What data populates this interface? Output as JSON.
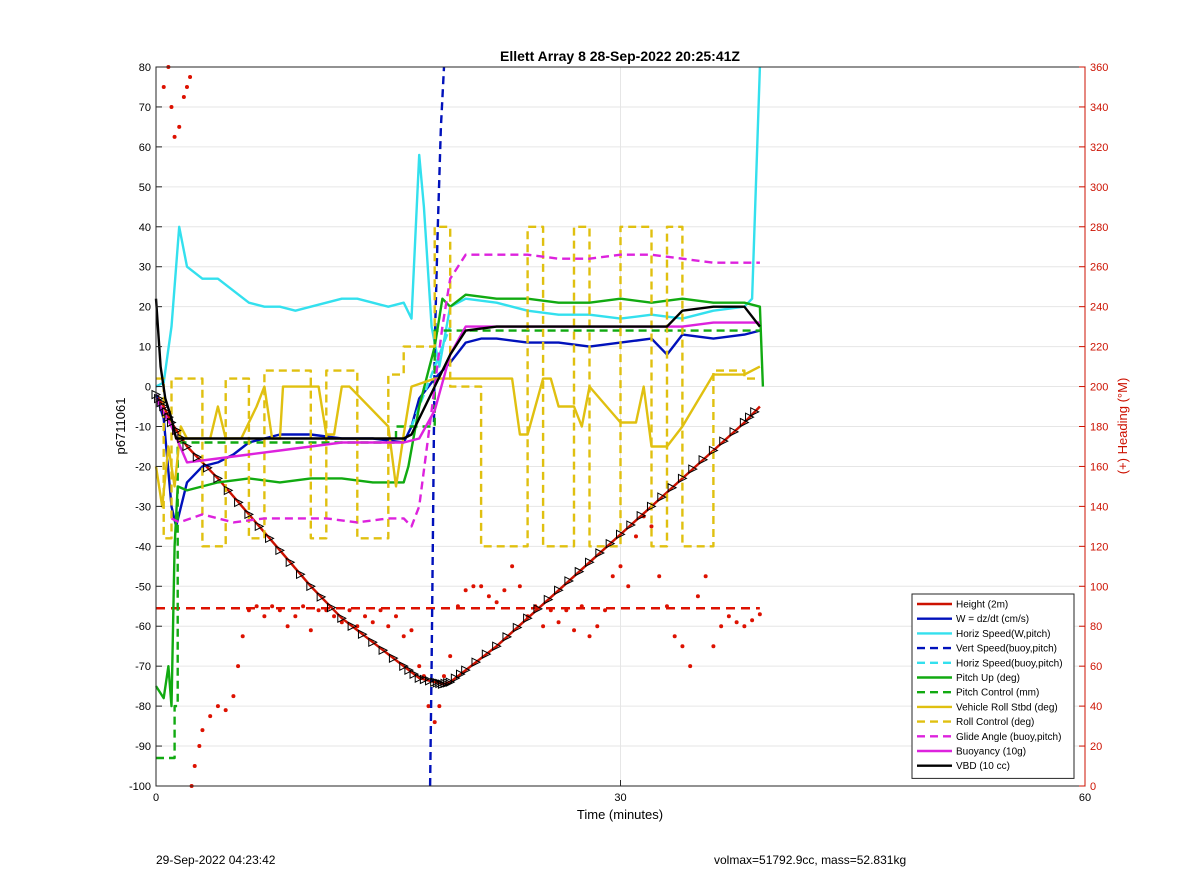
{
  "chart_data": {
    "type": "line",
    "title": "Ellett Array 8 28-Sep-2022 20:25:41Z",
    "xlabel": "Time (minutes)",
    "ylabel_left": "p6711061",
    "ylabel_right": "(+) Heading (°M)",
    "xlim": [
      0,
      60
    ],
    "ylim_left": [
      -100,
      80
    ],
    "ylim_right": [
      0,
      360
    ],
    "x_ticks": [
      0,
      30,
      60
    ],
    "y_ticks_left": [
      80,
      70,
      60,
      50,
      40,
      30,
      20,
      10,
      0,
      -10,
      -20,
      -30,
      -40,
      -50,
      -60,
      -70,
      -80,
      -90,
      -100
    ],
    "y_ticks_right": [
      360,
      340,
      320,
      300,
      280,
      260,
      240,
      220,
      200,
      180,
      160,
      140,
      120,
      100,
      80,
      60,
      40,
      20,
      0
    ],
    "grid": true,
    "legend_position": "bottom-right",
    "colors": {
      "height": "#cc1100",
      "w": "#0011bb",
      "horiz_w": "#33e0ee",
      "vert_buoy": "#0011bb",
      "horiz_buoy": "#33e0ee",
      "pitch_up": "#11aa11",
      "pitch_ctrl": "#11aa11",
      "roll": "#e0c010",
      "roll_ctrl": "#e0c010",
      "glide": "#dd22dd",
      "buoyancy": "#dd22dd",
      "vbd": "#000000",
      "heading": "#dd1100"
    },
    "series": [
      {
        "name": "Height (2m)",
        "style": "solid",
        "color_key": "height",
        "x": [
          0,
          0.5,
          1,
          2,
          4,
          6,
          8,
          10,
          12,
          14,
          16,
          17,
          18,
          18.5,
          19,
          20,
          22,
          24,
          26,
          28,
          30,
          32,
          34,
          36,
          38,
          39
        ],
        "y": [
          -2,
          -5,
          -9,
          -15,
          -23,
          -32,
          -41,
          -50,
          -58,
          -64,
          -70,
          -73,
          -74,
          -74.5,
          -74,
          -71,
          -65,
          -58,
          -51,
          -44,
          -37,
          -30,
          -23,
          -16,
          -9,
          -5
        ]
      },
      {
        "name": "W = dz/dt (cm/s)",
        "style": "solid",
        "color_key": "w",
        "x": [
          0,
          0.5,
          1,
          1.3,
          2,
          3,
          4,
          5,
          6,
          7,
          8,
          10,
          12,
          14,
          16,
          16.5,
          17,
          18,
          19,
          20,
          21,
          22,
          24,
          26,
          28,
          30,
          32,
          33,
          34,
          36,
          38,
          39
        ],
        "y": [
          -2,
          -8,
          -30,
          -35,
          -24,
          -20,
          -19,
          -17,
          -14,
          -13,
          -12,
          -12,
          -13,
          -13,
          -14,
          -10,
          -3,
          2,
          6,
          11,
          12,
          12,
          11,
          11,
          10,
          11,
          12,
          8,
          13,
          12,
          13,
          14
        ]
      },
      {
        "name": "Horiz Speed(W,pitch)",
        "style": "solid",
        "color_key": "horiz_w",
        "x": [
          0,
          0.5,
          1,
          1.5,
          2,
          3,
          4,
          5,
          6,
          7,
          8,
          9,
          10,
          11,
          12,
          13,
          14,
          15,
          16,
          16.5,
          17,
          17.3,
          17.8,
          18.3,
          19,
          20,
          22,
          24,
          26,
          28,
          30,
          32,
          34,
          36,
          38,
          38.5,
          39
        ],
        "y": [
          0,
          1,
          15,
          40,
          30,
          27,
          27,
          24,
          21,
          20,
          20,
          19,
          20,
          21,
          22,
          22,
          21,
          20,
          21,
          17,
          58,
          45,
          15,
          5,
          20,
          22,
          21,
          19,
          18,
          18,
          17,
          18,
          17,
          19,
          20,
          22,
          80
        ]
      },
      {
        "name": "Vert Speed(buoy,pitch)",
        "style": "dashed",
        "color_key": "vert_buoy",
        "x": [
          17.7,
          17.8,
          17.9,
          18.0,
          18.2,
          18.4,
          18.6
        ],
        "y": [
          -100,
          -70,
          -30,
          10,
          40,
          65,
          80
        ]
      },
      {
        "name": "Horiz Speed(buoy,pitch)",
        "style": "dashed",
        "color_key": "horiz_buoy",
        "x": [
          16.5,
          17,
          17.5,
          18,
          18.5,
          19
        ],
        "y": [
          -10,
          -5,
          0,
          5,
          10,
          15
        ]
      },
      {
        "name": "Pitch Up (deg)",
        "style": "solid",
        "color_key": "pitch_up",
        "x": [
          0,
          0.5,
          0.8,
          1,
          1.2,
          1.4,
          2,
          3,
          4,
          6,
          8,
          10,
          12,
          14,
          15,
          16,
          16.3,
          17,
          18,
          18.5,
          19,
          20,
          22,
          24,
          26,
          28,
          30,
          32,
          34,
          36,
          38,
          39,
          39.2
        ],
        "y": [
          -75,
          -78,
          -70,
          -80,
          -40,
          -25,
          -26,
          -25,
          -24,
          -23,
          -24,
          -23,
          -23,
          -24,
          -24,
          -24,
          -20,
          -5,
          10,
          22,
          20,
          23,
          22,
          22,
          21,
          21,
          22,
          21,
          22,
          21,
          21,
          20,
          0
        ]
      },
      {
        "name": "Pitch Control (mm)",
        "style": "dashed",
        "color_key": "pitch_ctrl",
        "x": [
          0,
          1.2,
          1.2,
          1.4,
          1.4,
          15.5,
          15.5,
          18,
          18,
          19,
          19,
          39
        ],
        "y": [
          -93,
          -93,
          -80,
          -80,
          -14,
          -14,
          -10,
          -10,
          14,
          14,
          14,
          14
        ]
      },
      {
        "name": "Vehicle Roll Stbd (deg)",
        "style": "solid",
        "color_key": "roll",
        "x": [
          0,
          0.4,
          0.8,
          1.2,
          1.6,
          2,
          3.5,
          4,
          4.5,
          5.5,
          6.5,
          7,
          7.5,
          8,
          8.2,
          10.5,
          11,
          11.5,
          12,
          12.5,
          15,
          15.5,
          16,
          16.5,
          18,
          20,
          22,
          23,
          23.5,
          24,
          25,
          25.5,
          26,
          27,
          27.5,
          28,
          30,
          31,
          31.5,
          32,
          33,
          34,
          36,
          38,
          39
        ],
        "y": [
          -20,
          -30,
          -15,
          -25,
          -10,
          -13,
          -13,
          -5,
          -13,
          -13,
          -5,
          0,
          -13,
          -13,
          0,
          0,
          -12,
          -12,
          0,
          0,
          -10,
          -25,
          -12,
          0,
          2,
          2,
          2,
          2,
          -12,
          -12,
          2,
          2,
          -5,
          -5,
          -10,
          0,
          -9,
          -9,
          0,
          -15,
          -15,
          -10,
          3,
          3,
          5
        ]
      },
      {
        "name": "Roll Control (deg)",
        "style": "dashed",
        "color_key": "roll_ctrl",
        "x": [
          0,
          0.5,
          0.5,
          1,
          1,
          3,
          3,
          4.5,
          4.5,
          6,
          6,
          7,
          7,
          10,
          10,
          11,
          11,
          13,
          13,
          15,
          15,
          16,
          16,
          18,
          18,
          19,
          19,
          21,
          21,
          24,
          24,
          25,
          25,
          27,
          27,
          28,
          28,
          30,
          30,
          32,
          32,
          33,
          33,
          34,
          34,
          36,
          36,
          38,
          38,
          39
        ],
        "y": [
          2,
          2,
          -38,
          -38,
          2,
          2,
          -40,
          -40,
          2,
          2,
          -38,
          -38,
          4,
          4,
          -38,
          -38,
          4,
          4,
          -38,
          -38,
          3,
          3,
          10,
          10,
          40,
          40,
          0,
          0,
          -40,
          -40,
          40,
          40,
          -40,
          -40,
          40,
          40,
          -40,
          -40,
          40,
          40,
          -40,
          -40,
          40,
          40,
          -40,
          -40,
          4,
          4,
          2,
          2
        ]
      },
      {
        "name": "Glide Angle (buoy,pitch)",
        "style": "dashed",
        "color_key": "glide",
        "x": [
          1,
          1.5,
          3,
          5,
          7,
          9,
          11,
          13,
          15,
          16,
          16.5,
          17,
          17.5,
          18,
          18.5,
          19,
          20,
          22,
          24,
          26,
          28,
          30,
          32,
          34,
          36,
          38,
          39
        ],
        "y": [
          -33,
          -34,
          -32,
          -34,
          -33,
          -33,
          -33,
          -34,
          -33,
          -33,
          -35,
          -30,
          -15,
          0,
          15,
          27,
          33,
          33,
          33,
          32,
          32,
          33,
          33,
          32,
          31,
          31,
          31
        ]
      },
      {
        "name": "Buoyancy (10g)",
        "style": "solid",
        "color_key": "buoyancy",
        "x": [
          0,
          1,
          2,
          4,
          6,
          8,
          10,
          12,
          14,
          16,
          17,
          18,
          19,
          20,
          22,
          24,
          26,
          28,
          30,
          32,
          34,
          36,
          38,
          39
        ],
        "y": [
          -3,
          -10,
          -19,
          -18,
          -17,
          -16,
          -15,
          -14,
          -14,
          -14,
          -13,
          -6,
          8,
          15,
          15,
          15,
          15,
          15,
          15,
          15,
          15,
          16,
          16,
          16
        ]
      },
      {
        "name": "VBD (10 cc)",
        "style": "solid",
        "color_key": "vbd",
        "x": [
          0,
          0.3,
          0.6,
          1,
          1.3,
          2,
          4,
          6,
          8,
          10,
          12,
          14,
          16,
          16.5,
          17,
          18,
          19,
          20,
          22,
          24,
          26,
          28,
          30,
          32,
          33,
          34,
          36,
          38,
          39
        ],
        "y": [
          22,
          5,
          -3,
          -8,
          -13,
          -13,
          -13,
          -13,
          -13,
          -13,
          -13,
          -13,
          -13,
          -12,
          -8,
          0,
          8,
          14,
          15,
          15,
          15,
          15,
          15,
          15,
          15,
          19,
          20,
          20,
          15
        ]
      }
    ],
    "heading_series": {
      "name": "",
      "style": "dots",
      "axis": "right",
      "color_key": "heading",
      "x": [
        0.5,
        0.8,
        1,
        1.2,
        1.5,
        1.8,
        2,
        2.2,
        2.3,
        2.5,
        2.8,
        3,
        3.5,
        4,
        4.5,
        5,
        5.3,
        5.6,
        6,
        6.5,
        7,
        7.5,
        8,
        8.5,
        9,
        9.5,
        10,
        10.5,
        11,
        11.5,
        12,
        12.5,
        13,
        13.5,
        14,
        14.5,
        15,
        15.5,
        16,
        16.5,
        17,
        17.3,
        17.6,
        18,
        18.3,
        18.6,
        19,
        19.5,
        20,
        20.5,
        21,
        21.5,
        22,
        22.5,
        23,
        23.5,
        24,
        24.5,
        25,
        25.5,
        26,
        26.5,
        27,
        27.5,
        28,
        28.5,
        29,
        29.5,
        30,
        30.5,
        31,
        31.5,
        32,
        32.5,
        33,
        33.5,
        34,
        34.5,
        35,
        35.5,
        36,
        36.5,
        37,
        37.5,
        38,
        38.5,
        39
      ],
      "y": [
        350,
        360,
        340,
        325,
        330,
        345,
        350,
        355,
        0,
        10,
        20,
        28,
        35,
        40,
        38,
        45,
        60,
        75,
        88,
        90,
        85,
        90,
        88,
        80,
        85,
        90,
        78,
        88,
        88,
        85,
        82,
        88,
        80,
        85,
        82,
        88,
        80,
        85,
        75,
        78,
        60,
        55,
        40,
        32,
        40,
        55,
        65,
        90,
        98,
        100,
        100,
        95,
        92,
        98,
        110,
        100,
        85,
        90,
        80,
        88,
        82,
        88,
        78,
        90,
        75,
        80,
        88,
        105,
        110,
        100,
        125,
        135,
        130,
        105,
        90,
        75,
        70,
        60,
        95,
        105,
        70,
        80,
        85,
        82,
        80,
        83,
        86
      ]
    },
    "reference_line": {
      "name": "",
      "style": "dashed",
      "axis": "right",
      "color_key": "heading",
      "y": 89,
      "x": [
        0,
        39
      ]
    },
    "markers_on": "Height (2m)",
    "footer_left": "29-Sep-2022 04:23:42",
    "footer_right": "volmax=51792.9cc, mass=52.831kg"
  }
}
